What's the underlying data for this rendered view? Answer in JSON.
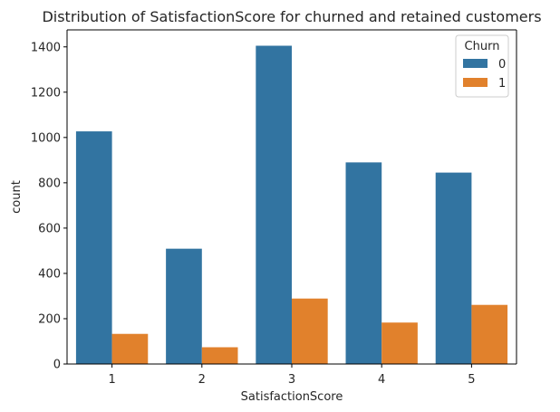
{
  "chart_data": {
    "type": "bar",
    "title": "Distribution of SatisfactionScore for churned and retained customers",
    "xlabel": "SatisfactionScore",
    "ylabel": "count",
    "categories": [
      "1",
      "2",
      "3",
      "4",
      "5"
    ],
    "series": [
      {
        "name": "0",
        "color": "#3274a1",
        "values": [
          1027,
          509,
          1405,
          890,
          845
        ]
      },
      {
        "name": "1",
        "color": "#e1812c",
        "values": [
          133,
          74,
          289,
          183,
          261
        ]
      }
    ],
    "ylim": [
      0,
      1475
    ],
    "yticks": [
      0,
      200,
      400,
      600,
      800,
      1000,
      1200,
      1400
    ],
    "grid": false,
    "legend": {
      "title": "Churn",
      "placement": "top-right"
    }
  }
}
